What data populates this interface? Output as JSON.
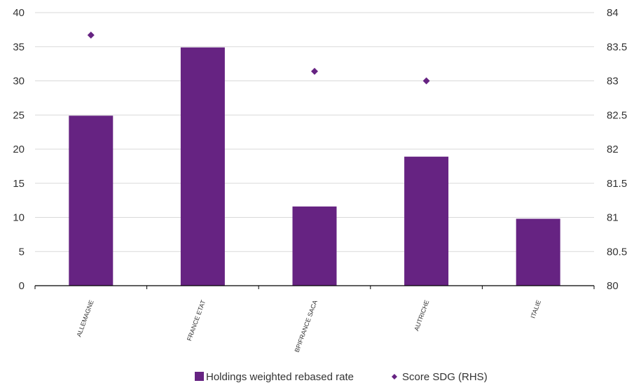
{
  "chart_data": {
    "type": "bar",
    "categories": [
      "ALLEMAGNE",
      "FRANCE ETAT",
      "BPIFRANCE SACA",
      "AUTRICHE",
      "ITALIE"
    ],
    "series": [
      {
        "name": "Holdings weighted rebased rate",
        "type": "bar",
        "axis": "left",
        "color": "#662382",
        "values": [
          24.9,
          34.9,
          11.6,
          18.9,
          9.8
        ]
      },
      {
        "name": "Score SDG (RHS)",
        "type": "scatter",
        "axis": "right",
        "marker": "diamond",
        "color": "#662382",
        "values": [
          83.67,
          null,
          83.14,
          83.0,
          null
        ]
      }
    ],
    "y_left": {
      "ylim": [
        0,
        40
      ],
      "ticks": [
        "0",
        "5",
        "10",
        "15",
        "20",
        "25",
        "30",
        "35",
        "40"
      ]
    },
    "y_right": {
      "ylim": [
        80,
        84
      ],
      "ticks": [
        "80",
        "80.5",
        "81",
        "81.5",
        "82",
        "82.5",
        "83",
        "83.5",
        "84"
      ]
    },
    "grid": true,
    "legend": "bottom"
  }
}
